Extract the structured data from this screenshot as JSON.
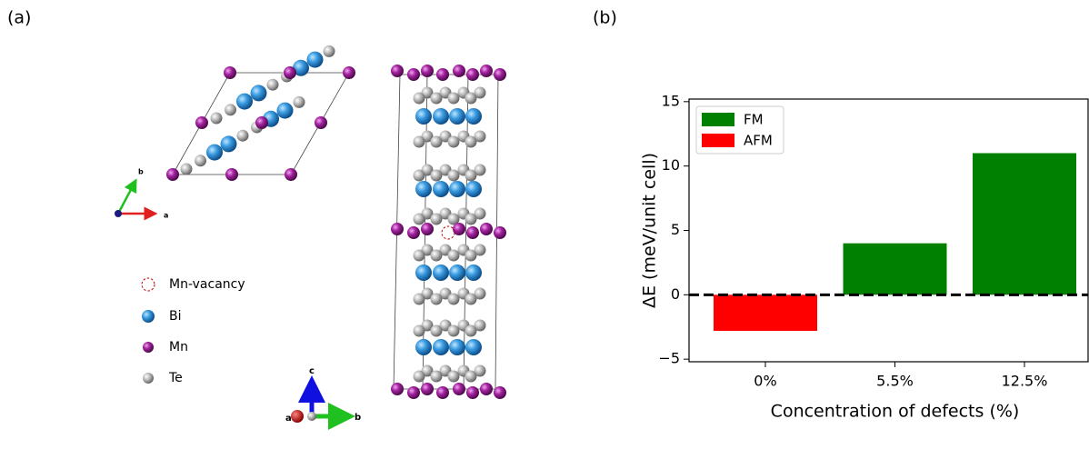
{
  "panel_labels": [
    "(a)",
    "(b)"
  ],
  "structure": {
    "legend": [
      "Mn-vacancy",
      "Bi",
      "Mn",
      "Te"
    ],
    "axes_top": [
      "a",
      "b"
    ],
    "axes_side": [
      "c",
      "a",
      "b"
    ]
  },
  "chart_data": {
    "type": "bar",
    "categories": [
      "0%",
      "5.5%",
      "12.5%"
    ],
    "series": [
      {
        "name": "FM",
        "color": "#008000",
        "values": [
          null,
          4,
          11
        ]
      },
      {
        "name": "AFM",
        "color": "#ff0000",
        "values": [
          -2.8,
          null,
          null
        ]
      }
    ],
    "ylabel": "ΔE (meV/unit cell)",
    "xlabel": "Concentration of defects (%)",
    "ylim": [
      -5.2,
      15.2
    ],
    "yticks": [
      {
        "value": -5,
        "label": "−5"
      },
      0,
      5,
      10,
      15
    ],
    "reference_line": 0,
    "legend": "upper left"
  }
}
